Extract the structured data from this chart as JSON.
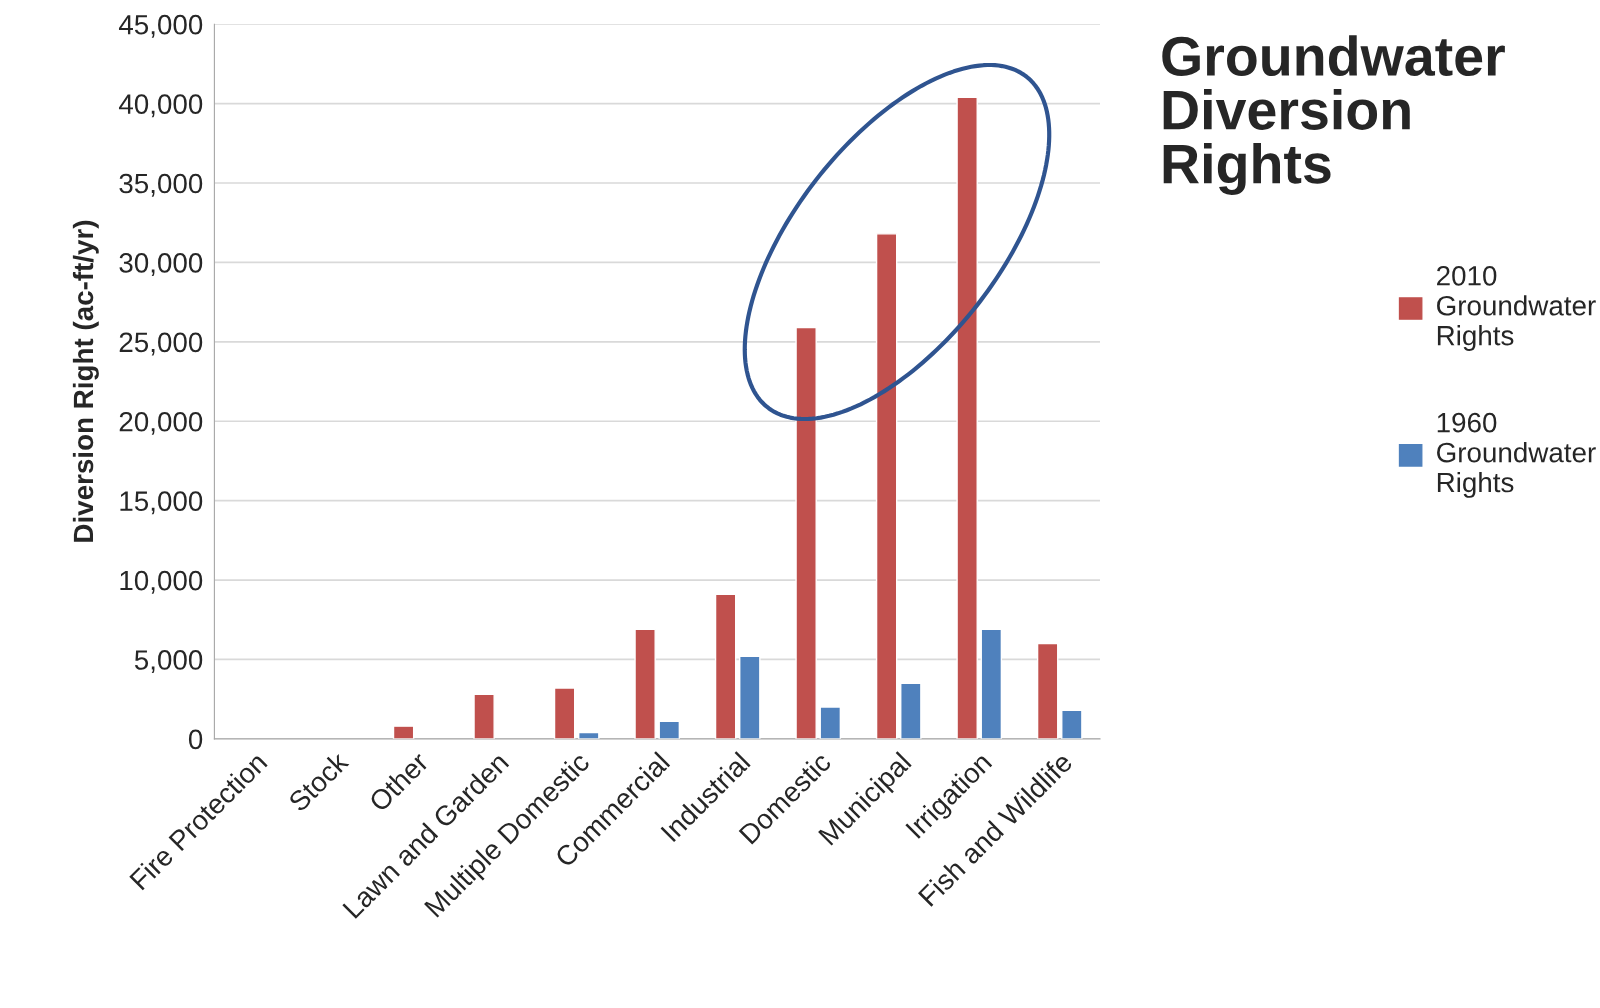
{
  "chart_data": {
    "type": "bar",
    "title": "Groundwater Diversion Rights",
    "ylabel": "Diversion Right (ac-ft/yr)",
    "categories": [
      "Fire Protection",
      "Stock",
      "Other",
      "Lawn and Garden",
      "Multiple Domestic",
      "Commercial",
      "Industrial",
      "Domestic",
      "Municipal",
      "Irrigation",
      "Fish and Wildlife"
    ],
    "series": [
      {
        "name": "2010 Groundwater Rights",
        "color": "#c0504d",
        "values": [
          null,
          null,
          800,
          2800,
          3200,
          6900,
          9100,
          25900,
          31800,
          40400,
          6000
        ]
      },
      {
        "name": "1960 Groundwater Rights",
        "color": "#4f81bd",
        "values": [
          null,
          null,
          null,
          null,
          400,
          1100,
          5200,
          2000,
          3500,
          6900,
          1800
        ]
      }
    ],
    "ylim": [
      0,
      45000
    ],
    "yticks": [
      {
        "value": 0,
        "label": "0"
      },
      {
        "value": 5000,
        "label": "5,000"
      },
      {
        "value": 10000,
        "label": "10,000"
      },
      {
        "value": 15000,
        "label": "15,000"
      },
      {
        "value": 20000,
        "label": "20,000"
      },
      {
        "value": 25000,
        "label": "25,000"
      },
      {
        "value": 30000,
        "label": "30,000"
      },
      {
        "value": 35000,
        "label": "35,000"
      },
      {
        "value": 40000,
        "label": "40,000"
      },
      {
        "value": 45000,
        "label": "45,000"
      }
    ],
    "grid": "y",
    "legend": "right"
  }
}
